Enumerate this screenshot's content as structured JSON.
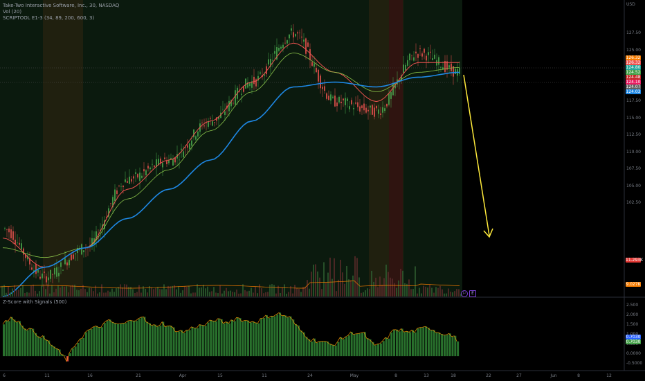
{
  "header": {
    "title_line": "Take-Two Interactive Software, Inc., 30, NASDAQ",
    "indicator_1": "Vol (20)",
    "indicator_2": "SCRIPTOOL E1-3 (34, 89, 200, 600, 3)",
    "sub_title": "Z-Score with Signals (500)"
  },
  "price_axis": {
    "top_label": "USD",
    "ticks": [
      "127.50",
      "125.00",
      "122.50",
      "120.00",
      "117.50",
      "115.00",
      "112.50",
      "110.00",
      "107.50",
      "105.00",
      "102.50"
    ]
  },
  "price_tags": [
    {
      "text": "126.32",
      "color": "#f57c00"
    },
    {
      "text": "126.32",
      "color": "#ef5350"
    },
    {
      "text": "124.80",
      "color": "#26a69a"
    },
    {
      "text": "124.52",
      "color": "#43a047"
    },
    {
      "text": "124.48",
      "color": "#c62828"
    },
    {
      "text": "124.10",
      "color": "#e91e63"
    },
    {
      "text": "124.07",
      "color": "#616161"
    },
    {
      "text": "124.03",
      "color": "#1e88e5"
    },
    {
      "text": "11.293K",
      "color": "#e53935"
    },
    {
      "text": "9.027K",
      "color": "#f57c00"
    }
  ],
  "sub_axis": {
    "ticks": [
      "2.500",
      "2.000",
      "1.500",
      "1.000",
      "0.500",
      "0.0000",
      "-0.5000"
    ],
    "tags": [
      {
        "text": "0.7030",
        "color": "#2962ff"
      },
      {
        "text": "0.7030",
        "color": "#43a047"
      }
    ]
  },
  "time_axis": [
    "6",
    "11",
    "16",
    "21",
    "Apr",
    "15",
    "11",
    "24",
    "May",
    "8",
    "13",
    "18",
    "22",
    "27",
    "Jun",
    "8",
    "12"
  ],
  "icons": {
    "ind1": "flag-icon",
    "ind2": "earnings-icon",
    "ind2_text": "E"
  },
  "colors": {
    "background": "#000000",
    "panel_bg": "#0b1a0e",
    "up_candle": "#4caf50",
    "down_candle": "#ef5350",
    "ma_fast": "#ef5350",
    "ma_mid": "#8bc34a",
    "ma_slow": "#1e88e5",
    "arrow": "#ffeb3b",
    "zscore_fill": "#2e7d32",
    "zscore_line": "#ff9800"
  },
  "chart_data": {
    "type": "line",
    "title": "Take-Two Interactive Software, Inc., 30, NASDAQ",
    "xlabel": "",
    "ylabel": "",
    "ylim": [
      101,
      130
    ],
    "x": [
      "Mar 6",
      "Mar 11",
      "Mar 16",
      "Mar 21",
      "Apr",
      "Apr 15",
      "Apr 11",
      "Apr 24",
      "May",
      "May 8",
      "May 13",
      "May 18"
    ],
    "series": [
      {
        "name": "close",
        "values": [
          108,
          103,
          106,
          113,
          115,
          119,
          123,
          128,
          121,
          120,
          126,
          124
        ]
      },
      {
        "name": "ma_fast",
        "values": [
          107,
          104,
          106,
          112,
          115,
          119,
          123,
          127,
          124,
          121,
          125,
          125
        ]
      },
      {
        "name": "ma_mid",
        "values": [
          106,
          105,
          106,
          111,
          114,
          118,
          122,
          126,
          124,
          122,
          124,
          124.5
        ]
      },
      {
        "name": "ma_slow",
        "values": [
          101,
          104,
          106,
          109,
          112,
          115,
          119,
          122.5,
          123,
          122.5,
          123.5,
          124
        ]
      }
    ],
    "zscore": {
      "name": "Z-Score with Signals (500)",
      "ylim": [
        -0.6,
        2.8
      ],
      "values": [
        1.8,
        2.1,
        1.6,
        1.3,
        0.9,
        0.4,
        -0.2,
        0.8,
        1.4,
        1.6,
        1.9,
        1.7,
        1.9,
        2.2,
        1.6,
        1.8,
        1.5,
        1.3,
        1.6,
        1.7,
        2.0,
        1.8,
        2.1,
        1.9,
        1.9,
        2.2,
        2.3,
        2.1,
        1.4,
        0.9,
        0.8,
        0.6,
        1.0,
        1.3,
        1.2,
        0.5,
        0.9,
        1.5,
        1.3,
        1.4,
        1.6,
        1.3,
        1.2,
        0.8
      ]
    },
    "grid": false
  }
}
